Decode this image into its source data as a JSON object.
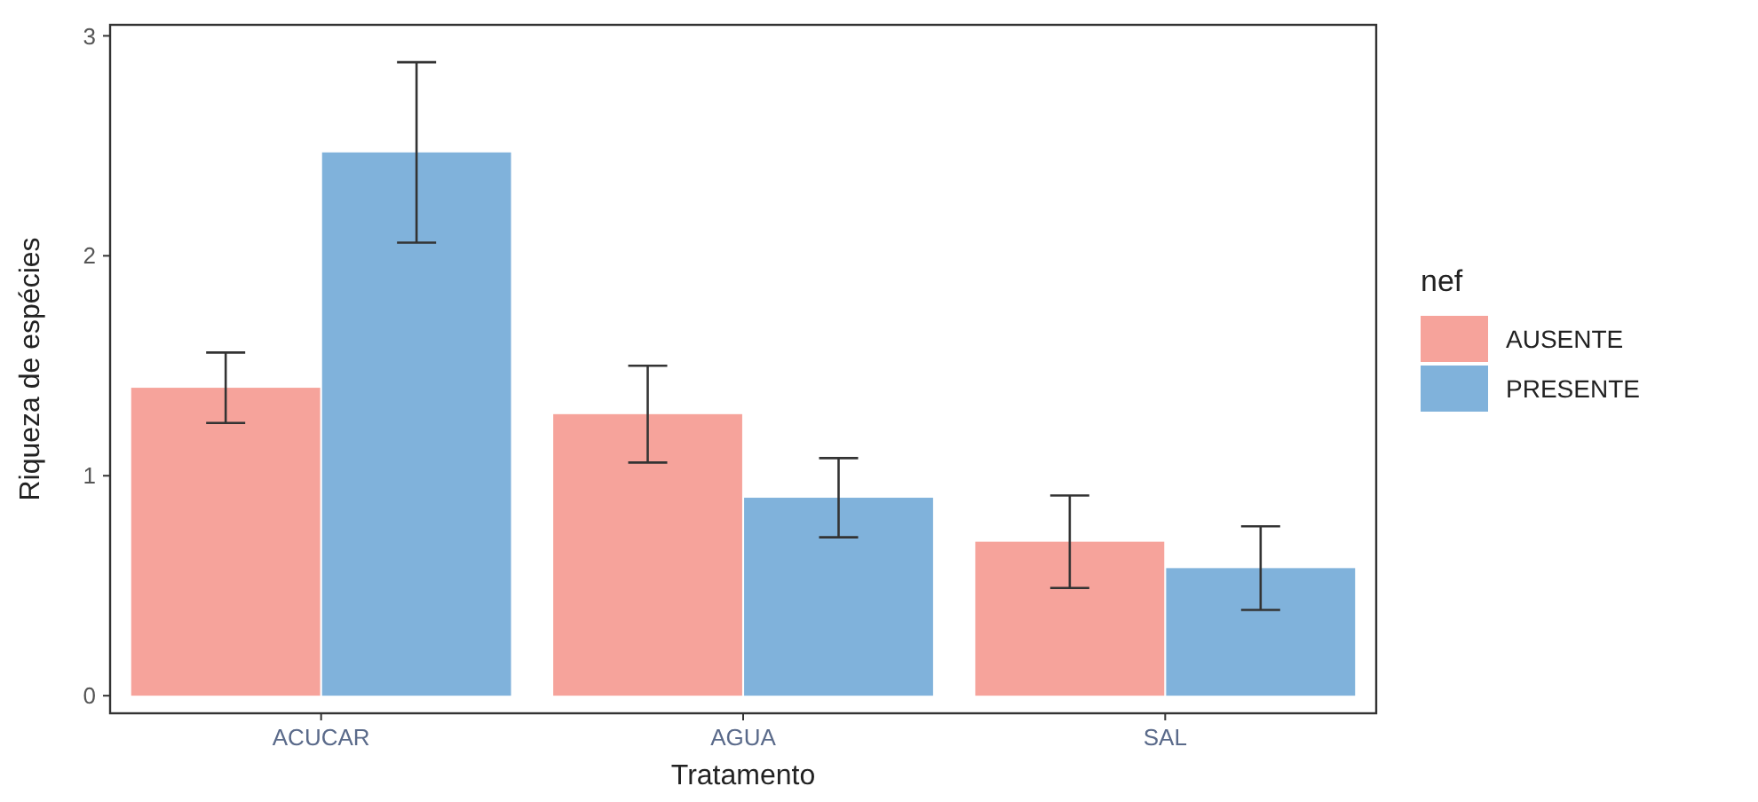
{
  "chart_data": {
    "type": "bar",
    "xlabel": "Tratamento",
    "ylabel": "Riqueza de espécies",
    "legend_title": "nef",
    "categories": [
      "ACUCAR",
      "AGUA",
      "SAL"
    ],
    "series": [
      {
        "name": "AUSENTE",
        "color": "#f6a39b",
        "values": [
          1.4,
          1.28,
          0.7
        ],
        "errors": [
          0.16,
          0.22,
          0.21
        ]
      },
      {
        "name": "PRESENTE",
        "color": "#80b2db",
        "values": [
          2.47,
          0.9,
          0.58
        ],
        "errors": [
          0.41,
          0.18,
          0.19
        ]
      }
    ],
    "ylim": [
      -0.08,
      3.05
    ],
    "yticks": [
      0,
      1,
      2,
      3
    ],
    "grid": false,
    "legend": "right"
  }
}
